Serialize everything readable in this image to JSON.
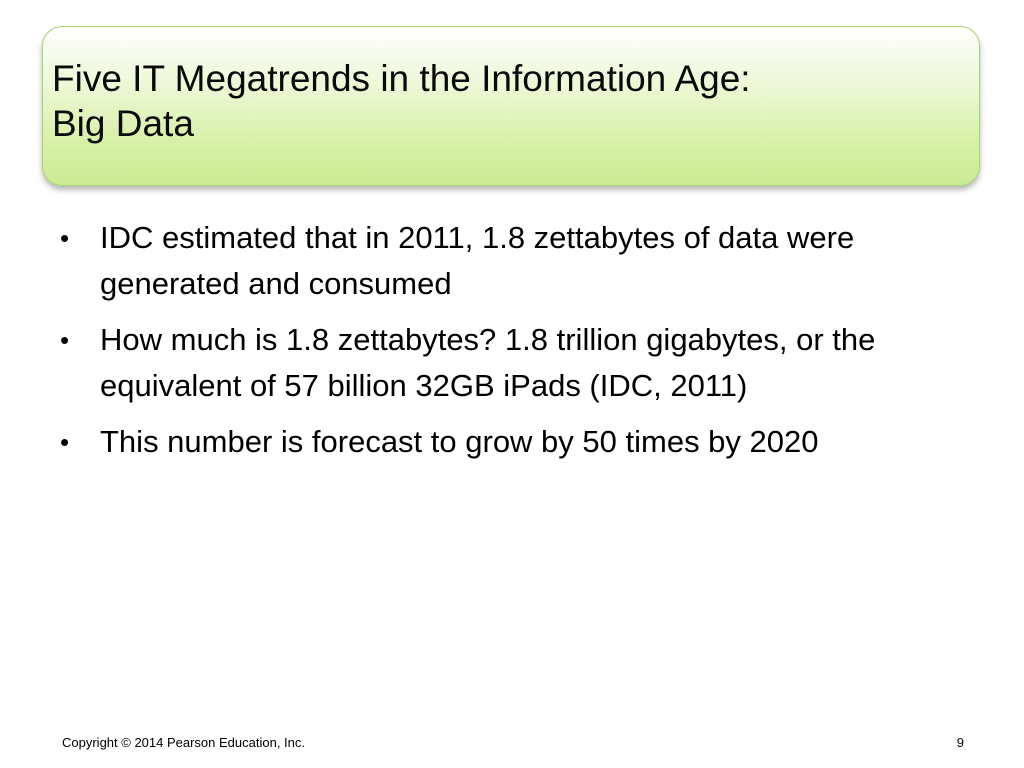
{
  "slide": {
    "title_lines": [
      "Five IT Megatrends in the Information Age:",
      "Big Data"
    ],
    "bullet_symbol": "•",
    "bullets": [
      "IDC estimated that in 2011, 1.8 zettabytes of data were generated and consumed",
      "How much is 1.8 zettabytes? 1.8 trillion gigabytes, or the equivalent of 57 billion 32GB iPads (IDC, 2011)",
      "This number is forecast to grow by 50 times by 2020"
    ],
    "footer": {
      "copyright": "Copyright © 2014 Pearson Education, Inc.",
      "page_number": "9"
    },
    "colors": {
      "title_fill": "#d6f0a4",
      "title_border": "#a9d36e"
    }
  }
}
